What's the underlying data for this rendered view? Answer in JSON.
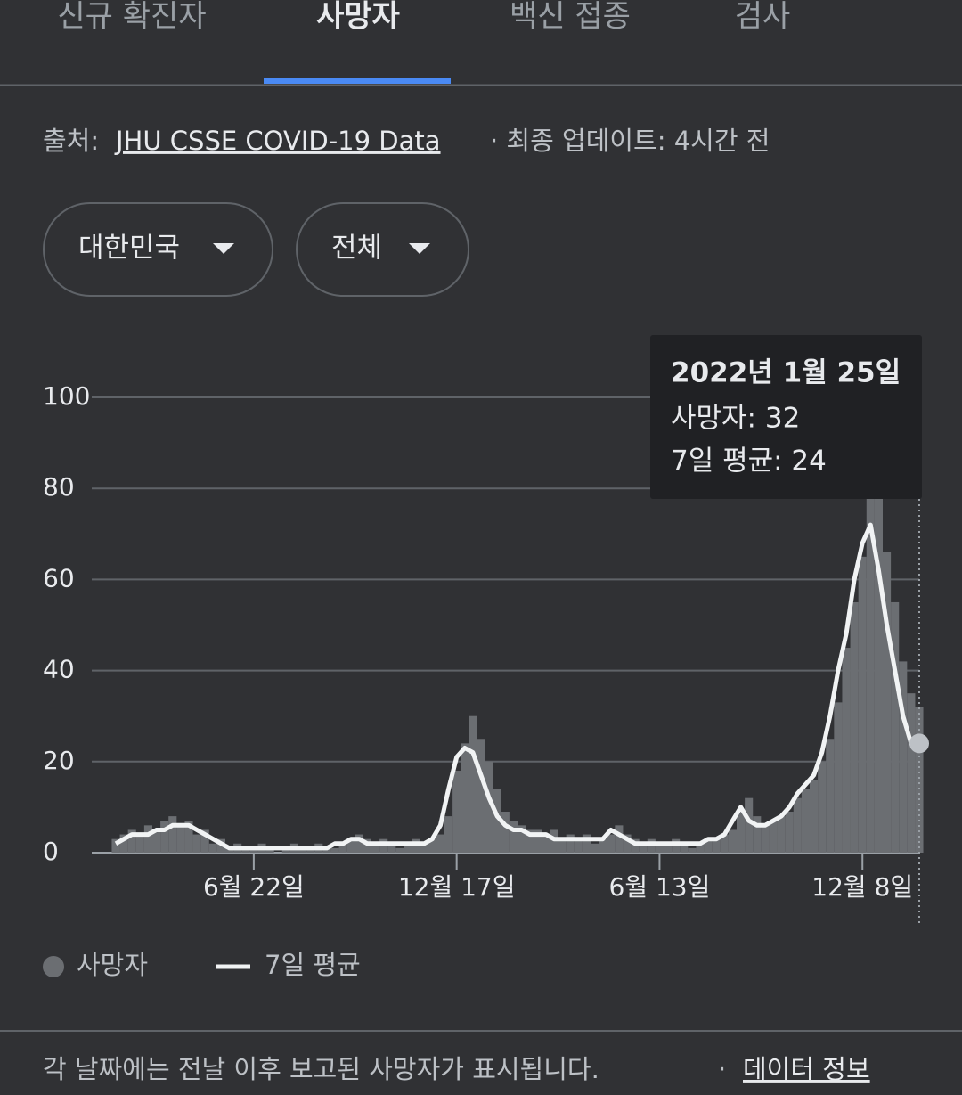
{
  "tabs": [
    "신규 확진자",
    "사망자",
    "백신 접종",
    "검사"
  ],
  "source": {
    "prefix": "출처:",
    "link": "JHU CSSE COVID-19 Data",
    "update": "· 최종 업데이트: 4시간 전"
  },
  "filters": [
    "대한민국",
    "전체"
  ],
  "chart_data": {
    "type": "bar",
    "categories": [
      null,
      null,
      null,
      null,
      null,
      null,
      null,
      null,
      null,
      null,
      null,
      null,
      null,
      null,
      null,
      null,
      null,
      "6월 22일",
      null,
      null,
      null,
      null,
      null,
      null,
      null,
      null,
      null,
      null,
      null,
      null,
      null,
      null,
      null,
      null,
      null,
      null,
      null,
      null,
      null,
      null,
      null,
      null,
      "12월 17일",
      null,
      null,
      null,
      null,
      null,
      null,
      null,
      null,
      null,
      null,
      null,
      null,
      null,
      null,
      null,
      null,
      null,
      null,
      null,
      null,
      null,
      null,
      null,
      null,
      "6월 13일",
      null,
      null,
      null,
      null,
      null,
      null,
      null,
      null,
      null,
      null,
      null,
      null,
      null,
      null,
      null,
      null,
      null,
      null,
      null,
      null,
      null,
      null,
      null,
      null,
      "12월 8일",
      null,
      null,
      null,
      null,
      null,
      null,
      null
    ],
    "series": [
      {
        "name": "사망자",
        "type": "bar",
        "color": "#6b6e72",
        "values": [
          3,
          4,
          5,
          4,
          6,
          5,
          7,
          8,
          6,
          7,
          4,
          5,
          2,
          3,
          1,
          2,
          1,
          1,
          2,
          1,
          0,
          1,
          2,
          1,
          1,
          2,
          1,
          1,
          2,
          3,
          4,
          3,
          2,
          3,
          2,
          1,
          2,
          3,
          2,
          3,
          4,
          8,
          18,
          24,
          30,
          25,
          20,
          14,
          9,
          7,
          6,
          5,
          5,
          4,
          5,
          3,
          4,
          3,
          4,
          2,
          3,
          4,
          6,
          4,
          3,
          2,
          3,
          2,
          2,
          3,
          2,
          1,
          2,
          3,
          3,
          4,
          5,
          9,
          12,
          8,
          6,
          7,
          8,
          9,
          12,
          14,
          16,
          20,
          25,
          33,
          45,
          55,
          65,
          80,
          78,
          66,
          55,
          42,
          35,
          32
        ]
      },
      {
        "name": "7일 평균",
        "type": "line",
        "color": "#f1f3f4",
        "values": [
          2,
          3,
          4,
          4,
          4,
          5,
          5,
          6,
          6,
          6,
          5,
          4,
          3,
          2,
          1,
          1,
          1,
          1,
          1,
          1,
          1,
          1,
          1,
          1,
          1,
          1,
          1,
          2,
          2,
          3,
          3,
          2,
          2,
          2,
          2,
          2,
          2,
          2,
          2,
          3,
          6,
          14,
          21,
          23,
          22,
          17,
          12,
          8,
          6,
          5,
          5,
          4,
          4,
          4,
          3,
          3,
          3,
          3,
          3,
          3,
          3,
          5,
          4,
          3,
          2,
          2,
          2,
          2,
          2,
          2,
          2,
          2,
          2,
          3,
          3,
          4,
          7,
          10,
          7,
          6,
          6,
          7,
          8,
          10,
          13,
          15,
          17,
          22,
          30,
          40,
          48,
          60,
          68,
          72,
          62,
          50,
          40,
          30,
          24,
          24
        ]
      }
    ],
    "ylim": [
      0,
      100
    ],
    "yticks": [
      0,
      20,
      40,
      60,
      80,
      100
    ],
    "grid": true,
    "tooltip": {
      "date": "2022년 1월 25일",
      "deaths": "사망자: 32",
      "average": "7일 평균: 24"
    }
  },
  "footer": {
    "note": "각 날짜에는 전날 이후 보고된 사망자가 표시됩니다.",
    "separator": "·",
    "link": "데이터 정보"
  }
}
